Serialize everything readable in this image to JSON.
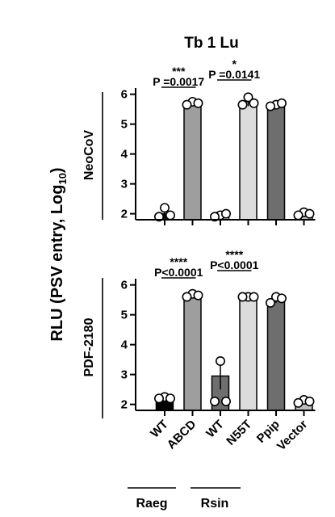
{
  "chart_data": {
    "type": "bar",
    "title": "Tb 1 Lu",
    "ylabel": "RLU (PSV entry, Log",
    "ylabel_subscript": "10",
    "ylabel_close": ")",
    "categories": [
      "WT",
      "ABCD",
      "WT",
      "N55T",
      "Ppip",
      "Vector"
    ],
    "groups": [
      {
        "label": "Raeg",
        "categories": [
          0,
          1
        ]
      },
      {
        "label": "Rsin",
        "categories": [
          2,
          3
        ]
      }
    ],
    "bar_colors": [
      "#1a1a1a",
      "#9e9e9e",
      "#ffffff",
      "#dcdcdc",
      "#6e6e6e",
      "#bcbcbc"
    ],
    "panels": [
      {
        "name": "NeoCoV",
        "ylim": [
          1.8,
          6.1
        ],
        "yticks": [
          2,
          3,
          4,
          5,
          6
        ],
        "bar_colors": [
          "#1a1a1a",
          "#9e9e9e",
          "#ffffff",
          "#dcdcdc",
          "#6e6e6e",
          "#bcbcbc"
        ],
        "values": [
          2.0,
          5.7,
          1.95,
          5.75,
          5.65,
          2.0
        ],
        "errors": [
          0.15,
          0.1,
          0.1,
          0.15,
          0.05,
          0.1
        ],
        "points": [
          [
            2.2,
            1.9,
            1.95
          ],
          [
            5.75,
            5.65,
            5.7
          ],
          [
            1.95,
            1.9,
            2.0
          ],
          [
            5.9,
            5.65,
            5.7
          ],
          [
            5.65,
            5.6,
            5.7
          ],
          [
            2.05,
            1.95,
            2.0
          ]
        ],
        "annotations": [
          {
            "from": 0,
            "to": 1,
            "stars": "***",
            "p": "P =0.0017",
            "level": 1
          },
          {
            "from": 2,
            "to": 3,
            "stars": "*",
            "p": "P =0.0141",
            "level": 2
          }
        ]
      },
      {
        "name": "PDF-2180",
        "ylim": [
          1.8,
          6.1
        ],
        "yticks": [
          2,
          3,
          4,
          5,
          6
        ],
        "bar_colors": [
          "#000000",
          "#9e9e9e",
          "#6e6e6e",
          "#dcdcdc",
          "#6e6e6e",
          "#bcbcbc"
        ],
        "values": [
          2.2,
          5.65,
          2.95,
          5.6,
          5.5,
          2.1
        ],
        "errors": [
          0.05,
          0.05,
          0.45,
          0.05,
          0.1,
          0.1
        ],
        "points": [
          [
            2.25,
            2.2,
            2.2
          ],
          [
            5.7,
            5.6,
            5.65
          ],
          [
            3.45,
            2.1,
            2.1
          ],
          [
            5.6,
            5.6,
            5.6
          ],
          [
            5.6,
            5.4,
            5.55
          ],
          [
            2.15,
            2.05,
            2.1
          ]
        ],
        "annotations": [
          {
            "from": 0,
            "to": 1,
            "stars": "****",
            "p": "P<0.0001",
            "level": 1
          },
          {
            "from": 2,
            "to": 3,
            "stars": "****",
            "p": "P<0.0001",
            "level": 2
          }
        ]
      }
    ]
  }
}
